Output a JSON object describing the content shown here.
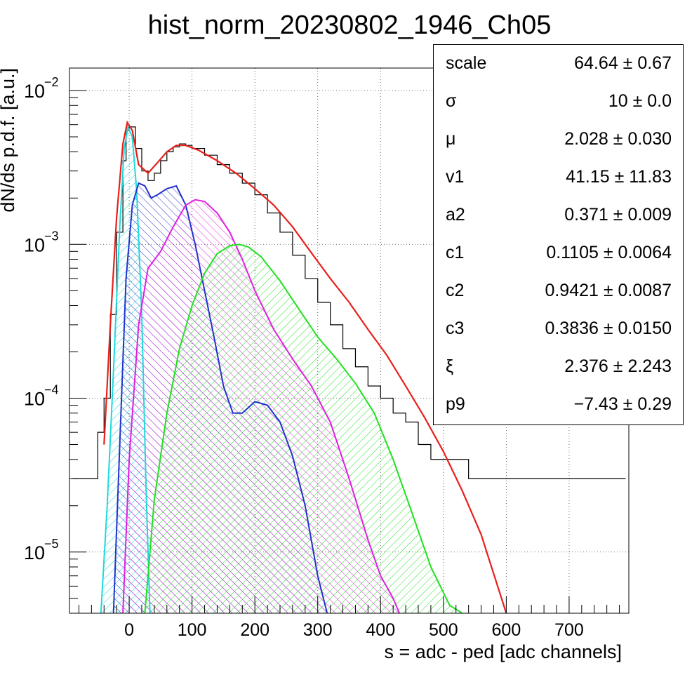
{
  "chart_data": {
    "type": "line",
    "title": "hist_norm_20230802_1946_Ch05",
    "xlabel": "s = adc - ped [adc channels]",
    "ylabel": "dN/ds p.d.f. [a.u.]",
    "xlim": [
      -95,
      795
    ],
    "ylim": [
      4e-06,
      0.014
    ],
    "yscale": "log",
    "grid": true,
    "x_ticks": [
      "0",
      "100",
      "200",
      "300",
      "400",
      "500",
      "600",
      "700"
    ],
    "y_ticks": [
      {
        "base": "10",
        "exp": "−2",
        "value": 0.01
      },
      {
        "base": "10",
        "exp": "−3",
        "value": 0.001
      },
      {
        "base": "10",
        "exp": "−4",
        "value": 0.0001
      },
      {
        "base": "10",
        "exp": "−5",
        "value": 1e-05
      }
    ],
    "series": [
      {
        "kind": "histogram",
        "color": "#000000",
        "x": [
          -90,
          -70,
          -50,
          -40,
          -30,
          -20,
          -10,
          -5,
          0,
          10,
          20,
          30,
          40,
          50,
          60,
          70,
          80,
          90,
          100,
          120,
          140,
          160,
          180,
          200,
          220,
          240,
          260,
          280,
          300,
          320,
          340,
          360,
          380,
          400,
          420,
          440,
          460,
          480,
          500,
          520,
          540,
          560,
          580,
          600,
          640,
          680,
          720,
          760,
          790
        ],
        "y": [
          3e-05,
          3e-05,
          6e-05,
          0.0001,
          0.00035,
          0.0012,
          0.0035,
          0.0055,
          0.0058,
          0.0042,
          0.003,
          0.0026,
          0.0029,
          0.0035,
          0.004,
          0.0043,
          0.0045,
          0.0044,
          0.0042,
          0.0038,
          0.0033,
          0.0029,
          0.0025,
          0.0021,
          0.0016,
          0.0012,
          0.00085,
          0.0006,
          0.00042,
          0.0003,
          0.00021,
          0.00016,
          0.00012,
          0.0001,
          8e-05,
          7e-05,
          5e-05,
          4e-05,
          4e-05,
          4e-05,
          3e-05,
          3e-05,
          3e-05,
          3e-05,
          3e-05,
          3e-05,
          3e-05,
          3e-05,
          3e-05
        ]
      },
      {
        "kind": "fit",
        "color": "#e8201c",
        "x": [
          -40,
          -30,
          -20,
          -10,
          -3,
          5,
          15,
          30,
          45,
          60,
          75,
          90,
          110,
          140,
          170,
          200,
          230,
          260,
          290,
          320,
          350,
          380,
          410,
          440,
          470,
          500,
          530,
          560,
          600
        ],
        "y": [
          5e-05,
          0.0003,
          0.0015,
          0.0045,
          0.0062,
          0.0055,
          0.0033,
          0.0029,
          0.0034,
          0.004,
          0.0044,
          0.0044,
          0.0041,
          0.0035,
          0.0029,
          0.0023,
          0.0018,
          0.0013,
          0.00088,
          0.0006,
          0.00042,
          0.00028,
          0.00019,
          0.00012,
          7.5e-05,
          4.5e-05,
          2.5e-05,
          1.3e-05,
          4e-06
        ]
      },
      {
        "kind": "component",
        "color": "#20d8dc",
        "x": [
          -45,
          -35,
          -25,
          -15,
          -8,
          -2,
          5,
          12,
          20,
          27,
          33
        ],
        "y": [
          4e-06,
          2e-05,
          0.00015,
          0.0013,
          0.0042,
          0.0058,
          0.005,
          0.0022,
          0.00035,
          2.5e-05,
          4e-06
        ]
      },
      {
        "kind": "component",
        "color": "#2233cc",
        "x": [
          -25,
          -15,
          -5,
          5,
          15,
          25,
          35,
          45,
          60,
          75,
          90,
          105,
          120,
          135,
          150,
          165,
          180,
          200,
          220,
          240,
          260,
          280,
          300,
          315
        ],
        "y": [
          4e-06,
          5e-05,
          0.0006,
          0.0018,
          0.0025,
          0.0024,
          0.002,
          0.0021,
          0.0023,
          0.0024,
          0.0018,
          0.001,
          0.0005,
          0.00025,
          0.00012,
          8e-05,
          8e-05,
          9.5e-05,
          9e-05,
          7e-05,
          4.2e-05,
          2e-05,
          7e-06,
          4e-06
        ]
      },
      {
        "kind": "component",
        "color": "#e020e0",
        "x": [
          -10,
          0,
          15,
          30,
          50,
          70,
          90,
          105,
          120,
          140,
          160,
          180,
          200,
          230,
          260,
          290,
          320,
          350,
          380,
          400,
          420,
          430
        ],
        "y": [
          4e-06,
          4e-05,
          0.0003,
          0.0007,
          0.0009,
          0.0013,
          0.0018,
          0.00195,
          0.0019,
          0.0016,
          0.0012,
          0.0008,
          0.0005,
          0.00028,
          0.00018,
          0.00012,
          7e-05,
          3e-05,
          1.2e-05,
          7e-06,
          5e-06,
          4e-06
        ]
      },
      {
        "kind": "component",
        "color": "#22e022",
        "x": [
          25,
          40,
          60,
          80,
          100,
          120,
          140,
          160,
          175,
          190,
          210,
          240,
          270,
          300,
          330,
          360,
          390,
          420,
          450,
          480,
          510,
          530
        ],
        "y": [
          4e-06,
          2.2e-05,
          8e-05,
          0.00021,
          0.0004,
          0.00065,
          0.00087,
          0.00098,
          0.001,
          0.00096,
          0.00083,
          0.00058,
          0.00038,
          0.00025,
          0.00018,
          0.000125,
          8e-05,
          4e-05,
          1.8e-05,
          8e-06,
          4.5e-06,
          4e-06
        ]
      }
    ]
  },
  "stats": [
    {
      "name": "scale",
      "value": "64.64 ± 0.67"
    },
    {
      "name": "σ",
      "value": "10 ± 0.0"
    },
    {
      "name": "μ",
      "value": "2.028 ± 0.030"
    },
    {
      "name": "v1",
      "value": "41.15 ± 11.83"
    },
    {
      "name": "a2",
      "value": "0.371 ± 0.009"
    },
    {
      "name": "c1",
      "value": "0.1105 ± 0.0064"
    },
    {
      "name": "c2",
      "value": "0.9421 ± 0.0087"
    },
    {
      "name": "c3",
      "value": "0.3836 ± 0.0150"
    },
    {
      "name": "ξ",
      "value": "2.376 ± 2.243"
    },
    {
      "name": "p9",
      "value": "−7.43 ± 0.29"
    }
  ]
}
